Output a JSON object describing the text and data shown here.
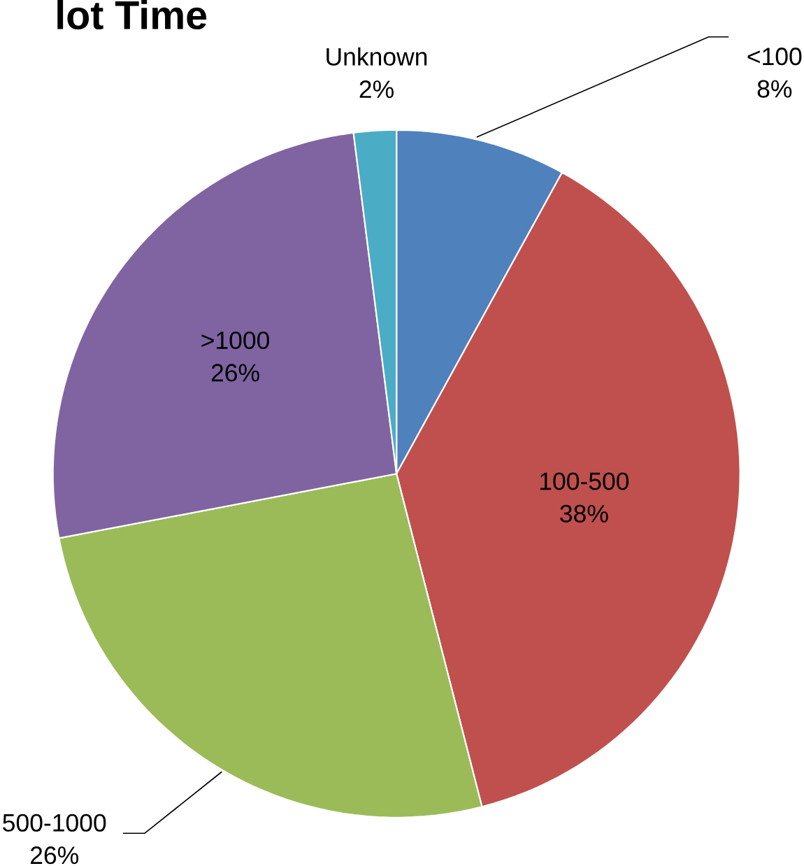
{
  "chart_data": {
    "type": "pie",
    "title": "lot Time",
    "categories": [
      "<100",
      "100-500",
      "500-1000",
      ">1000",
      "Unknown"
    ],
    "values": [
      8,
      38,
      26,
      26,
      2
    ],
    "value_labels": [
      "8%",
      "38%",
      "26%",
      "26%",
      "2%"
    ],
    "colors": [
      "#4f81bd",
      "#c0504d",
      "#9bbb59",
      "#8064a2",
      "#4bacc6"
    ]
  }
}
